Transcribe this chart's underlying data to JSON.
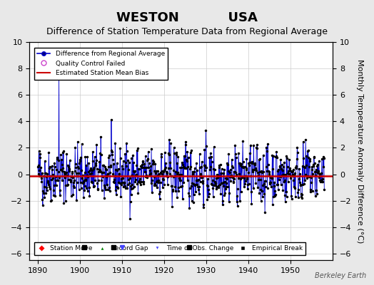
{
  "title": "WESTON           USA",
  "subtitle": "Difference of Station Temperature Data from Regional Average",
  "ylabel": "Monthly Temperature Anomaly Difference (°C)",
  "xlabel_years": [
    1890,
    1900,
    1910,
    1920,
    1930,
    1940,
    1950
  ],
  "xlim": [
    1888,
    1960
  ],
  "ylim": [
    -6.5,
    10
  ],
  "yticks": [
    -6,
    -4,
    -2,
    0,
    2,
    4,
    6,
    8,
    10
  ],
  "background_color": "#e8e8e8",
  "plot_bg_color": "#ffffff",
  "line_color": "#0000cc",
  "bias_line_color": "#cc0000",
  "marker_color": "#000000",
  "empirical_break_years": [
    1901,
    1908,
    1926
  ],
  "obs_change_years": [
    1910
  ],
  "seed": 42,
  "bias_value": -0.15,
  "watermark": "Berkeley Earth",
  "title_fontsize": 13,
  "subtitle_fontsize": 9,
  "tick_fontsize": 8,
  "ylabel_fontsize": 8
}
